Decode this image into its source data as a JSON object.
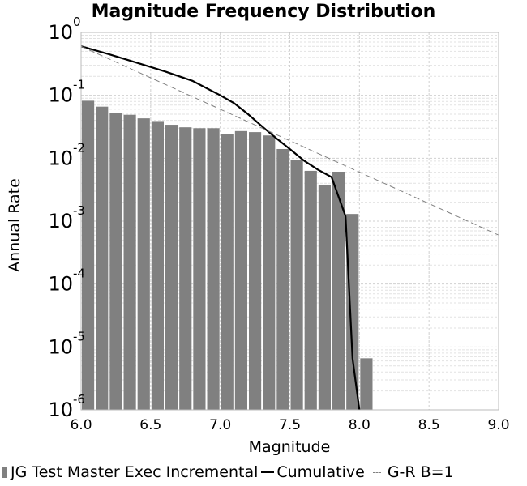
{
  "chart_data": {
    "type": "bar",
    "title": "Magnitude Frequency Distribution",
    "xlabel": "Magnitude",
    "ylabel": "Annual Rate",
    "xlim": [
      6.0,
      9.0
    ],
    "ylim": [
      1e-06,
      1
    ],
    "yscale": "log",
    "grid": true,
    "legend_position": "bottom",
    "x_ticks": [
      "6.0",
      "6.5",
      "7.0",
      "7.5",
      "8.0",
      "8.5",
      "9.0"
    ],
    "y_ticks": [
      {
        "base": "10",
        "exp": "0"
      },
      {
        "base": "10",
        "exp": "-1"
      },
      {
        "base": "10",
        "exp": "-2"
      },
      {
        "base": "10",
        "exp": "-3"
      },
      {
        "base": "10",
        "exp": "-4"
      },
      {
        "base": "10",
        "exp": "-5"
      },
      {
        "base": "10",
        "exp": "-6"
      }
    ],
    "series": [
      {
        "name": "JG Test Master Exec Incremental",
        "kind": "bar",
        "color": "#808080",
        "bar_width": 0.1,
        "x": [
          6.05,
          6.15,
          6.25,
          6.35,
          6.45,
          6.55,
          6.65,
          6.75,
          6.85,
          6.95,
          7.05,
          7.15,
          7.25,
          7.35,
          7.45,
          7.55,
          7.65,
          7.75,
          7.85,
          7.95,
          8.05
        ],
        "values": [
          0.082,
          0.066,
          0.053,
          0.049,
          0.043,
          0.039,
          0.034,
          0.031,
          0.03,
          0.03,
          0.024,
          0.027,
          0.026,
          0.023,
          0.014,
          0.0095,
          0.0063,
          0.0038,
          0.0061,
          0.0013,
          6.6e-06
        ]
      },
      {
        "name": "Cumulative",
        "kind": "line",
        "color": "#000000",
        "x": [
          6.0,
          6.2,
          6.4,
          6.6,
          6.8,
          7.0,
          7.1,
          7.2,
          7.3,
          7.4,
          7.5,
          7.6,
          7.7,
          7.8,
          7.9,
          7.95,
          8.0
        ],
        "values": [
          0.6,
          0.45,
          0.33,
          0.24,
          0.17,
          0.1,
          0.075,
          0.05,
          0.032,
          0.021,
          0.014,
          0.0092,
          0.0066,
          0.005,
          0.0012,
          6.6e-06,
          1e-06
        ]
      },
      {
        "name": "G-R B=1",
        "kind": "dashed-line",
        "color": "#808080",
        "x": [
          6.0,
          9.0
        ],
        "values": [
          0.6,
          0.0006
        ]
      }
    ]
  }
}
